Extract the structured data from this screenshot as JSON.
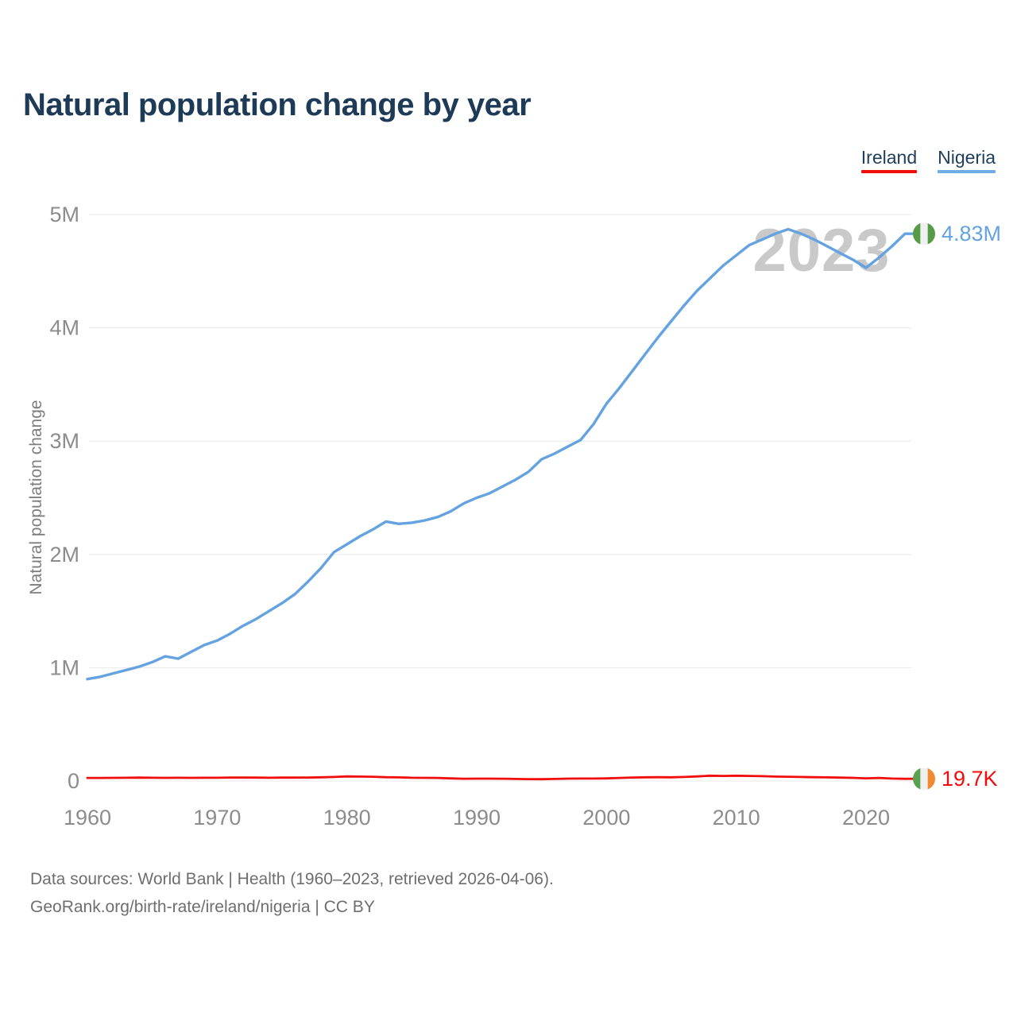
{
  "title": "Natural population change by year",
  "legend": {
    "items": [
      {
        "label": "Ireland",
        "color": "#f20d0d"
      },
      {
        "label": "Nigeria",
        "color": "#6fade6"
      }
    ]
  },
  "watermark": "2023",
  "footer": {
    "line1": "Data sources: World Bank | Health (1960–2023, retrieved 2026-04-06).",
    "line2": "GeoRank.org/birth-rate/ireland/nigeria | CC BY"
  },
  "chart_data": {
    "type": "line",
    "title": "Natural population change by year",
    "xlabel": "",
    "ylabel": "Natural population change",
    "grid": "horizontal",
    "legend_position": "top-right",
    "x_range": {
      "start": 1960,
      "end": 2023,
      "step": 1
    },
    "x_ticks": [
      1960,
      1970,
      1980,
      1990,
      2000,
      2010,
      2020
    ],
    "y_ticks": [
      {
        "value_millions": 0,
        "label": "0"
      },
      {
        "value_millions": 1,
        "label": "1M"
      },
      {
        "value_millions": 2,
        "label": "2M"
      },
      {
        "value_millions": 3,
        "label": "3M"
      },
      {
        "value_millions": 4,
        "label": "4M"
      },
      {
        "value_millions": 5,
        "label": "5M"
      }
    ],
    "ylim_millions": [
      0,
      5.15
    ],
    "series": [
      {
        "name": "Ireland",
        "color": "#f20d0d",
        "end_label": "19.7K",
        "flag_stripes": [
          "#59a14e",
          "#f0f0f0",
          "#f08a33"
        ],
        "values_millions": [
          0.027,
          0.027,
          0.028,
          0.029,
          0.03,
          0.029,
          0.028,
          0.029,
          0.028,
          0.029,
          0.029,
          0.031,
          0.031,
          0.03,
          0.029,
          0.03,
          0.03,
          0.031,
          0.033,
          0.036,
          0.041,
          0.039,
          0.038,
          0.034,
          0.032,
          0.029,
          0.028,
          0.027,
          0.023,
          0.02,
          0.021,
          0.021,
          0.02,
          0.018,
          0.017,
          0.016,
          0.018,
          0.021,
          0.022,
          0.022,
          0.023,
          0.027,
          0.031,
          0.033,
          0.034,
          0.033,
          0.036,
          0.041,
          0.047,
          0.045,
          0.047,
          0.045,
          0.043,
          0.039,
          0.038,
          0.036,
          0.034,
          0.032,
          0.03,
          0.028,
          0.024,
          0.027,
          0.022,
          0.0197
        ]
      },
      {
        "name": "Nigeria",
        "color": "#64a3e0",
        "end_label": "4.83M",
        "flag_stripes": [
          "#569b45",
          "#f0f0f0",
          "#569b45"
        ],
        "values_millions": [
          0.9,
          0.92,
          0.95,
          0.98,
          1.01,
          1.05,
          1.1,
          1.08,
          1.14,
          1.2,
          1.24,
          1.3,
          1.37,
          1.43,
          1.5,
          1.57,
          1.65,
          1.76,
          1.88,
          2.02,
          2.09,
          2.16,
          2.22,
          2.29,
          2.27,
          2.28,
          2.3,
          2.33,
          2.38,
          2.45,
          2.5,
          2.54,
          2.6,
          2.66,
          2.73,
          2.84,
          2.89,
          2.95,
          3.01,
          3.15,
          3.33,
          3.47,
          3.62,
          3.77,
          3.92,
          4.06,
          4.2,
          4.33,
          4.44,
          4.55,
          4.64,
          4.73,
          4.78,
          4.83,
          4.87,
          4.83,
          4.78,
          4.72,
          4.66,
          4.6,
          4.53,
          4.62,
          4.72,
          4.83
        ]
      }
    ]
  },
  "style": {
    "grid_color": "#e8e8e8",
    "tick_color": "#8c8c8c",
    "axis_label_color": "#7d7d7d",
    "watermark_color": "#c9c9c9"
  }
}
